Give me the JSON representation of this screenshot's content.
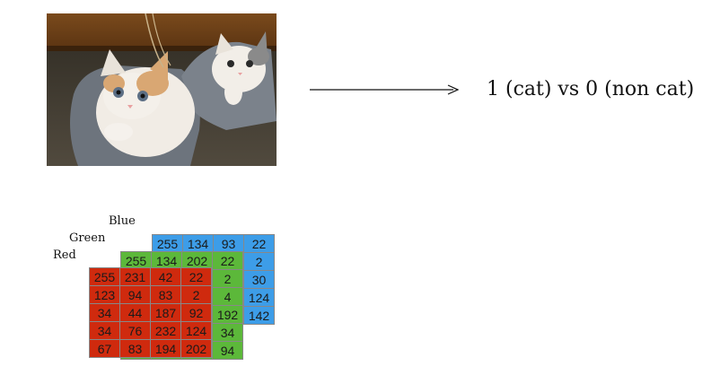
{
  "result_label": "1 (cat) vs 0 (non cat)",
  "channels": {
    "blue": {
      "label": "Blue",
      "color": "#3d9de8",
      "rows": [
        [
          "255",
          "134",
          "93",
          "22"
        ],
        [
          "",
          "",
          "",
          "2"
        ],
        [
          "",
          "",
          "",
          "30"
        ],
        [
          "",
          "",
          "",
          "124"
        ],
        [
          "",
          "",
          "",
          "142"
        ]
      ]
    },
    "green": {
      "label": "Green",
      "color": "#5cb83a",
      "rows": [
        [
          "255",
          "134",
          "202",
          "22"
        ],
        [
          "",
          "",
          "",
          "2"
        ],
        [
          "",
          "",
          "",
          "4"
        ],
        [
          "",
          "",
          "",
          "192"
        ],
        [
          "",
          "",
          "",
          "34"
        ],
        [
          "",
          "",
          "",
          "94"
        ]
      ]
    },
    "red": {
      "label": "Red",
      "color": "#cf2a0e",
      "rows": [
        [
          "255",
          "231",
          "42",
          "22"
        ],
        [
          "123",
          "94",
          "83",
          "2"
        ],
        [
          "34",
          "44",
          "187",
          "92"
        ],
        [
          "34",
          "76",
          "232",
          "124"
        ],
        [
          "67",
          "83",
          "194",
          "202"
        ]
      ]
    }
  },
  "photo": {
    "icon": "kitten-photo"
  }
}
